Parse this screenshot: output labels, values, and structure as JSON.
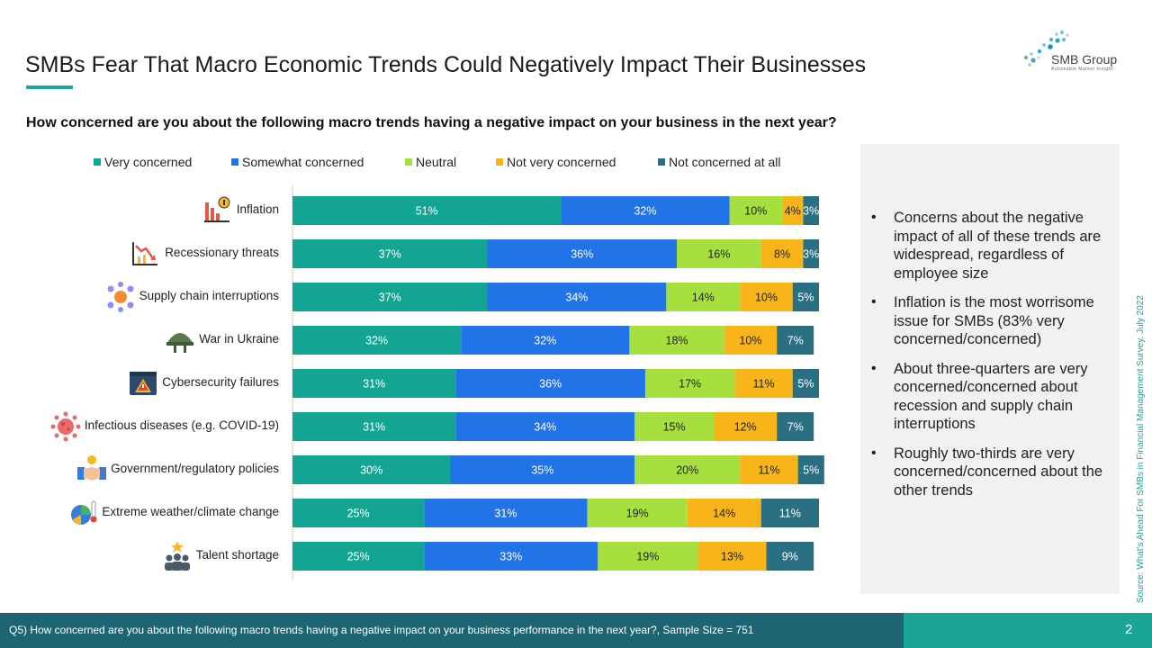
{
  "title": "SMBs Fear That Macro Economic Trends Could Negatively Impact Their Businesses",
  "logo": {
    "name": "SMB Group",
    "tagline": "Actionable Market Insight"
  },
  "question": "How concerned are you about the following macro trends having a negative impact on your business in the next year?",
  "colors": {
    "very_concerned": "#12a594",
    "somewhat_concerned": "#2272e8",
    "neutral": "#a5e03f",
    "not_very_concerned": "#f7b51a",
    "not_concerned": "#2a6f82",
    "accent": "#1aa596",
    "footer_dark": "#1d6573"
  },
  "chart_data": {
    "type": "bar",
    "orientation": "horizontal",
    "stacked": true,
    "categories": [
      "Inflation",
      "Recessionary threats",
      "Supply chain interruptions",
      "War in Ukraine",
      "Cybersecurity failures",
      "Infectious diseases (e.g. COVID-19)",
      "Government/regulatory policies",
      "Extreme weather/climate change",
      "Talent shortage"
    ],
    "icons": [
      "inflation-chart-icon",
      "recession-chart-icon",
      "supply-chain-network-icon",
      "military-helmet-icon",
      "cybersecurity-warning-icon",
      "virus-icon",
      "handshake-icon",
      "weather-thermometer-icon",
      "talent-people-icon"
    ],
    "series": [
      {
        "name": "Very concerned",
        "color": "#12a594",
        "values": [
          51,
          37,
          37,
          32,
          31,
          31,
          30,
          25,
          25
        ]
      },
      {
        "name": "Somewhat concerned",
        "color": "#2272e8",
        "values": [
          32,
          36,
          34,
          32,
          36,
          34,
          35,
          31,
          33
        ]
      },
      {
        "name": "Neutral",
        "color": "#a5e03f",
        "values": [
          10,
          16,
          14,
          18,
          17,
          15,
          20,
          19,
          19
        ]
      },
      {
        "name": "Not very concerned",
        "color": "#f7b51a",
        "values": [
          4,
          8,
          10,
          10,
          11,
          12,
          11,
          14,
          13
        ]
      },
      {
        "name": "Not concerned at all",
        "color": "#2a6f82",
        "values": [
          3,
          3,
          5,
          7,
          5,
          7,
          5,
          11,
          9
        ]
      }
    ],
    "data_labels": true,
    "label_suffix": "%",
    "legend_position": "top",
    "xlim": [
      0,
      100
    ]
  },
  "bullets": [
    "Concerns about the negative impact of all of these trends are widespread, regardless of employee size",
    "Inflation is the most worrisome issue for SMBs (83% very concerned/concerned)",
    "About three-quarters are very concerned/concerned about recession and supply chain interruptions",
    "Roughly two-thirds are very concerned/concerned about the other trends"
  ],
  "source": "Source: What's Ahead For SMBs in Financial Management Survey, July 2022",
  "footer": {
    "question_note": "Q5) How concerned are you about the following macro trends having a negative impact on your business performance in the next year?, Sample Size = 751",
    "page_number": "2"
  }
}
